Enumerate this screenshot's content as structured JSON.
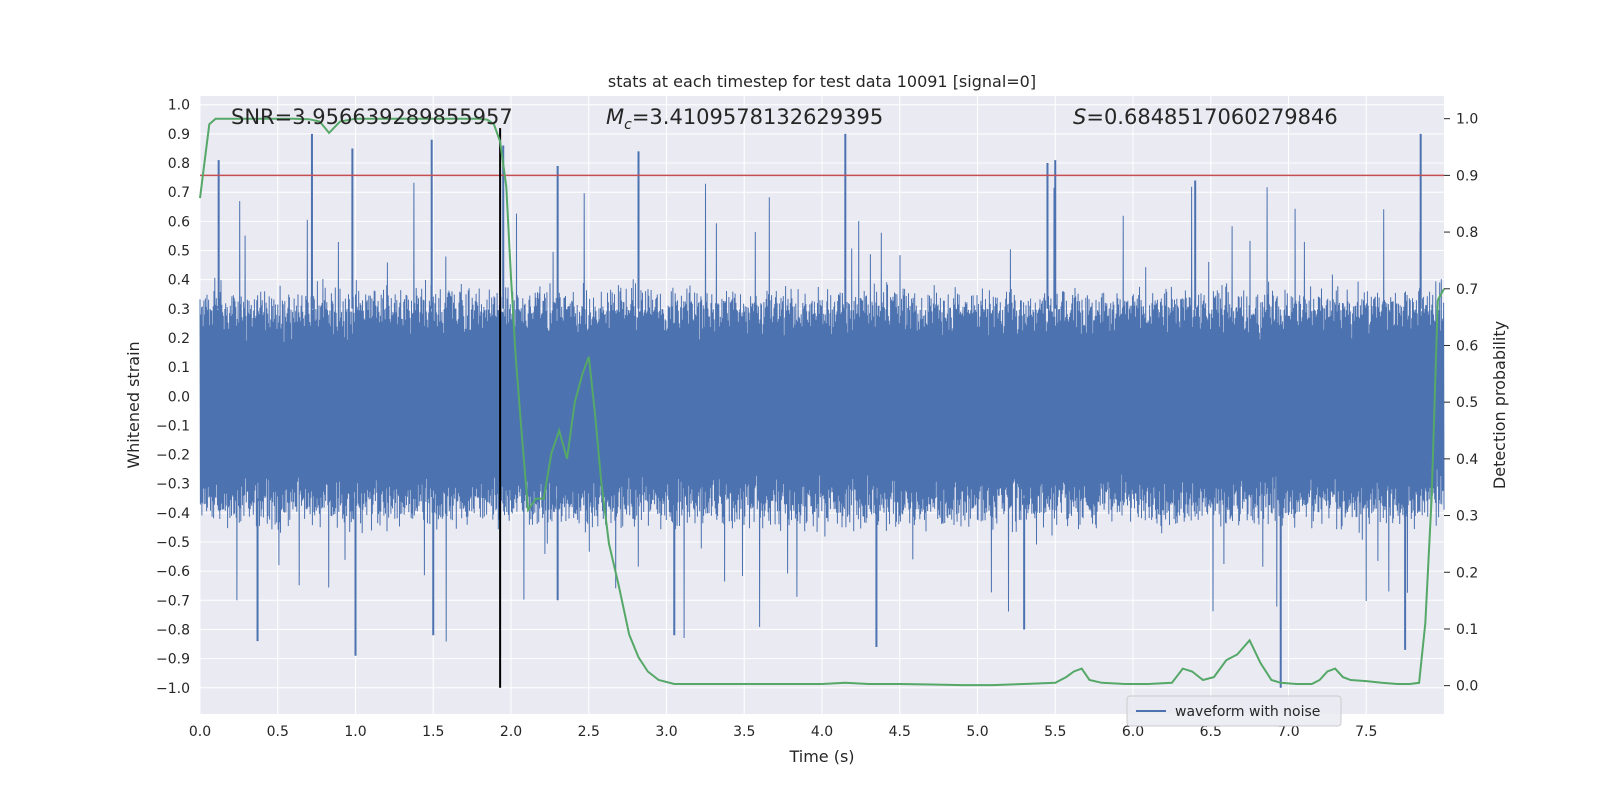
{
  "chart_data": {
    "type": "line",
    "title": "stats at each timestep for test data 10091 [signal=0]",
    "xlabel": "Time (s)",
    "ylabel": "Whitened strain",
    "y2label": "Detection probability",
    "xlim": [
      0.0,
      8.0
    ],
    "ylim": [
      -1.09,
      1.03
    ],
    "y2lim": [
      -0.05,
      1.04
    ],
    "xticks": [
      0.0,
      0.5,
      1.0,
      1.5,
      2.0,
      2.5,
      3.0,
      3.5,
      4.0,
      4.5,
      5.0,
      5.5,
      6.0,
      6.5,
      7.0,
      7.5
    ],
    "yticks": [
      1.0,
      0.9,
      0.8,
      0.7,
      0.6,
      0.5,
      0.4,
      0.3,
      0.2,
      0.1,
      0.0,
      -0.1,
      -0.2,
      -0.3,
      -0.4,
      -0.5,
      -0.6,
      -0.7,
      -0.8,
      -0.9,
      -1.0
    ],
    "y2ticks": [
      1.0,
      0.9,
      0.8,
      0.7,
      0.6,
      0.5,
      0.4,
      0.3,
      0.2,
      0.1,
      0.0
    ],
    "annotations": [
      {
        "prefix": "SNR",
        "rest": "=3.956639289855957",
        "italic": false
      },
      {
        "prefix": "M",
        "sub": "c",
        "rest": "=3.4109578132629395",
        "italic": true
      },
      {
        "prefix": "S",
        "rest": "=0.6848517060279846",
        "italic": true
      }
    ],
    "legend": {
      "label": "waveform with noise",
      "position": "lower-right"
    },
    "threshold": {
      "value": 0.9,
      "axis": "right",
      "color": "#c44e52"
    },
    "event_marker": {
      "x": 1.93,
      "ymin": -1.0,
      "ymax": 0.92,
      "color": "#000000"
    },
    "series": [
      {
        "name": "waveform with noise",
        "color": "#4c72b0",
        "axis": "left",
        "dense_noise": true,
        "typical_range": [
          -0.42,
          0.35
        ],
        "peaks_positive": [
          {
            "x": 0.12,
            "y": 0.81
          },
          {
            "x": 0.72,
            "y": 0.9
          },
          {
            "x": 0.98,
            "y": 0.85
          },
          {
            "x": 1.49,
            "y": 0.88
          },
          {
            "x": 1.95,
            "y": 0.86
          },
          {
            "x": 2.3,
            "y": 0.79
          },
          {
            "x": 2.82,
            "y": 0.84
          },
          {
            "x": 4.15,
            "y": 0.9
          },
          {
            "x": 5.45,
            "y": 0.8
          },
          {
            "x": 5.5,
            "y": 0.81
          },
          {
            "x": 6.4,
            "y": 0.74
          },
          {
            "x": 7.85,
            "y": 0.9
          }
        ],
        "peaks_negative": [
          {
            "x": 0.37,
            "y": -0.84
          },
          {
            "x": 1.0,
            "y": -0.89
          },
          {
            "x": 1.5,
            "y": -0.82
          },
          {
            "x": 2.3,
            "y": -0.7
          },
          {
            "x": 3.05,
            "y": -0.82
          },
          {
            "x": 4.35,
            "y": -0.86
          },
          {
            "x": 5.3,
            "y": -0.8
          },
          {
            "x": 6.95,
            "y": -1.0
          },
          {
            "x": 7.75,
            "y": -0.87
          }
        ]
      },
      {
        "name": "Detection probability",
        "color": "#55a868",
        "axis": "right",
        "x": [
          0.0,
          0.06,
          0.1,
          0.2,
          0.4,
          0.6,
          0.7,
          0.77,
          0.83,
          0.9,
          1.0,
          1.1,
          1.3,
          1.5,
          1.7,
          1.8,
          1.85,
          1.89,
          1.93,
          1.97,
          2.0,
          2.03,
          2.07,
          2.11,
          2.16,
          2.21,
          2.26,
          2.31,
          2.36,
          2.41,
          2.46,
          2.5,
          2.54,
          2.58,
          2.63,
          2.69,
          2.76,
          2.82,
          2.88,
          2.95,
          3.05,
          3.2,
          3.4,
          3.6,
          3.8,
          4.0,
          4.15,
          4.3,
          4.5,
          4.7,
          4.9,
          5.1,
          5.3,
          5.5,
          5.57,
          5.62,
          5.67,
          5.72,
          5.8,
          5.95,
          6.1,
          6.25,
          6.32,
          6.38,
          6.45,
          6.52,
          6.6,
          6.67,
          6.75,
          6.82,
          6.89,
          6.95,
          7.05,
          7.15,
          7.2,
          7.25,
          7.3,
          7.35,
          7.4,
          7.5,
          7.6,
          7.7,
          7.78,
          7.84,
          7.88,
          7.92,
          7.96,
          8.0
        ],
        "y": [
          0.86,
          0.99,
          1.0,
          1.0,
          1.0,
          1.0,
          0.999,
          0.995,
          0.975,
          0.995,
          1.0,
          1.0,
          1.0,
          1.0,
          1.0,
          1.0,
          0.998,
          0.99,
          0.96,
          0.88,
          0.72,
          0.58,
          0.44,
          0.31,
          0.33,
          0.33,
          0.41,
          0.45,
          0.4,
          0.5,
          0.55,
          0.58,
          0.48,
          0.36,
          0.25,
          0.18,
          0.09,
          0.05,
          0.025,
          0.01,
          0.003,
          0.003,
          0.003,
          0.003,
          0.003,
          0.003,
          0.005,
          0.003,
          0.003,
          0.002,
          0.001,
          0.001,
          0.003,
          0.005,
          0.015,
          0.025,
          0.03,
          0.01,
          0.005,
          0.003,
          0.003,
          0.005,
          0.03,
          0.025,
          0.01,
          0.015,
          0.045,
          0.055,
          0.08,
          0.04,
          0.01,
          0.005,
          0.003,
          0.003,
          0.01,
          0.025,
          0.03,
          0.015,
          0.01,
          0.008,
          0.005,
          0.003,
          0.003,
          0.005,
          0.11,
          0.33,
          0.68,
          0.7
        ]
      }
    ]
  }
}
